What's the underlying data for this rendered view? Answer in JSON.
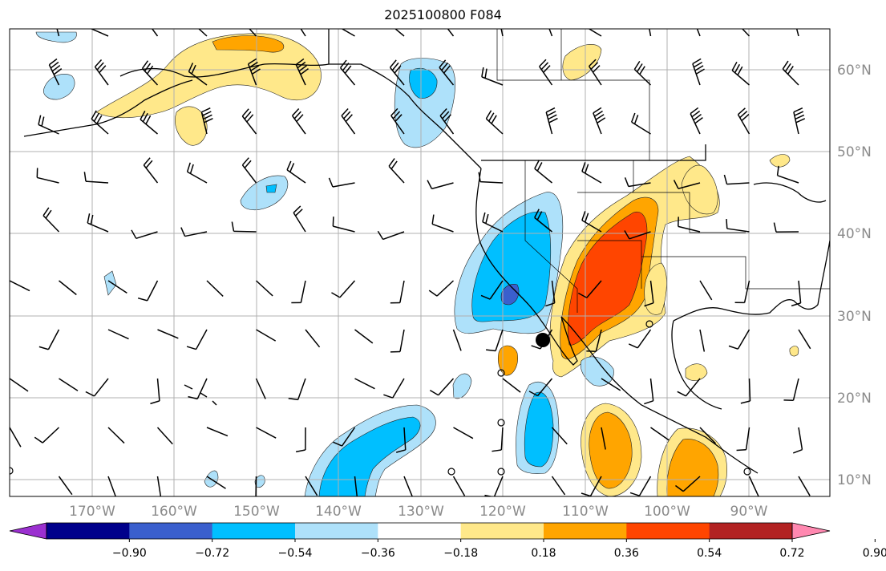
{
  "title": "2025100800 F084",
  "map": {
    "lon_labels": [
      "170°W",
      "160°W",
      "150°W",
      "140°W",
      "130°W",
      "120°W",
      "110°W",
      "100°W",
      "90°W"
    ],
    "lat_labels": [
      "60°N",
      "50°N",
      "40°N",
      "30°N",
      "20°N",
      "10°N"
    ],
    "gridlines": true,
    "colorbar": {
      "ticks": [
        "−0.90",
        "−0.72",
        "−0.54",
        "−0.36",
        "−0.18",
        "0.18",
        "0.36",
        "0.54",
        "0.72",
        "0.90"
      ],
      "colors": [
        "#9b30d0",
        "#00008b",
        "#3a5fcd",
        "#00bfff",
        "#aee1fa",
        "#ffffff",
        "#ffe88a",
        "#ffa500",
        "#ff4500",
        "#b22222",
        "#ff88b0"
      ]
    },
    "shading_colors": {
      "light_blue": "#aee1fa",
      "blue": "#00bfff",
      "mid_blue": "#3a5fcd",
      "light_yellow": "#ffe88a",
      "orange": "#ffa500",
      "red_orange": "#ff4500"
    }
  }
}
